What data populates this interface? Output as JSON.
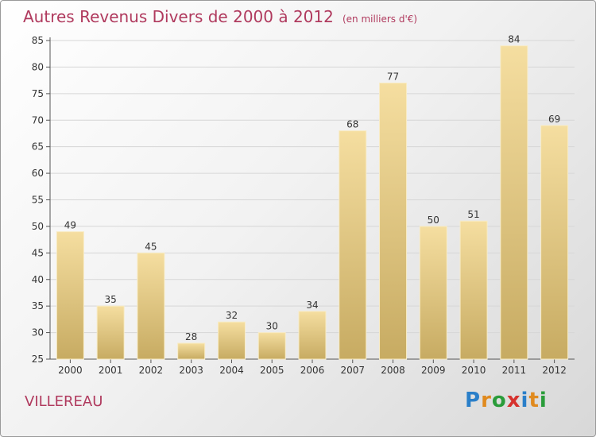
{
  "header": {
    "title": "Autres Revenus Divers de 2000 à 2012",
    "subtitle": "(en milliers d'€)"
  },
  "footer": {
    "commune": "VILLEREAU",
    "logo_letters": [
      {
        "char": "P",
        "color": "#2a7fc9"
      },
      {
        "char": "r",
        "color": "#e08a1e"
      },
      {
        "char": "o",
        "color": "#2a9c3a"
      },
      {
        "char": "x",
        "color": "#d6322e"
      },
      {
        "char": "i",
        "color": "#2a7fc9"
      },
      {
        "char": "t",
        "color": "#e08a1e"
      },
      {
        "char": "i",
        "color": "#2a9c3a"
      }
    ]
  },
  "chart_data": {
    "type": "bar",
    "title": "Autres Revenus Divers de 2000 à 2012",
    "subtitle": "(en milliers d'€)",
    "categories": [
      "2000",
      "2001",
      "2002",
      "2003",
      "2004",
      "2005",
      "2006",
      "2007",
      "2008",
      "2009",
      "2010",
      "2011",
      "2012"
    ],
    "values": [
      49,
      35,
      45,
      28,
      32,
      30,
      34,
      68,
      77,
      50,
      51,
      84,
      69
    ],
    "ylim": [
      25,
      85
    ],
    "yticks": [
      25,
      30,
      35,
      40,
      45,
      50,
      55,
      60,
      65,
      70,
      75,
      80,
      85
    ],
    "grid": true,
    "legend": "none",
    "bar_color_top": "#f5dea0",
    "bar_color_bottom": "#c7ab62"
  }
}
